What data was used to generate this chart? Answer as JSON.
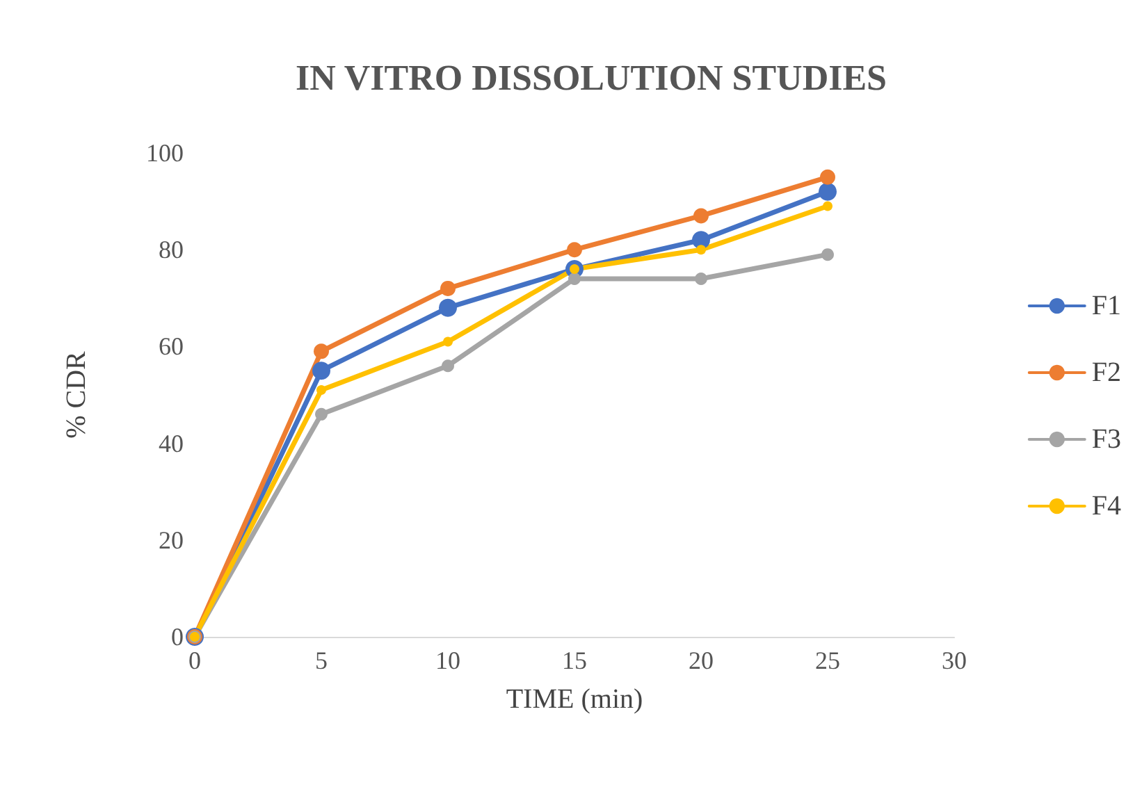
{
  "chart_data": {
    "type": "line",
    "title": "IN VITRO DISSOLUTION STUDIES",
    "xlabel": "TIME (min)",
    "ylabel": "% CDR",
    "x": [
      0,
      5,
      10,
      15,
      20,
      25
    ],
    "series": [
      {
        "name": "F1",
        "color": "#4472c4",
        "values": [
          0,
          55,
          68,
          76,
          82,
          92
        ]
      },
      {
        "name": "F2",
        "color": "#ed7d31",
        "values": [
          0,
          59,
          72,
          80,
          87,
          95
        ]
      },
      {
        "name": "F3",
        "color": "#a5a5a5",
        "values": [
          0,
          46,
          56,
          74,
          74,
          79
        ]
      },
      {
        "name": "F4",
        "color": "#ffc000",
        "values": [
          0,
          51,
          61,
          76,
          80,
          89
        ]
      }
    ],
    "xlim": [
      0,
      30
    ],
    "xticks": [
      0,
      5,
      10,
      15,
      20,
      25,
      30
    ],
    "ylim": [
      0,
      100
    ],
    "yticks": [
      0,
      20,
      40,
      60,
      80,
      100
    ],
    "grid": false,
    "legend": "right",
    "marker": "circle",
    "line_style": "solid"
  }
}
